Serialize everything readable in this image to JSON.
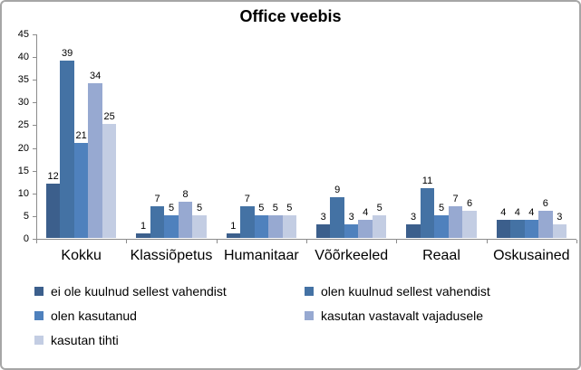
{
  "chart_data": {
    "type": "bar",
    "title": "Office veebis",
    "categories": [
      "Kokku",
      "Klassiõpetus",
      "Humanitaar",
      "Võõrkeeled",
      "Reaal",
      "Oskusained"
    ],
    "series": [
      {
        "name": "ei ole kuulnud sellest vahendist",
        "color": "#3c5f8c",
        "values": [
          12,
          1,
          1,
          3,
          3,
          4
        ]
      },
      {
        "name": "olen kuulnud sellest vahendist",
        "color": "#4472a4",
        "values": [
          39,
          7,
          7,
          9,
          11,
          4
        ]
      },
      {
        "name": "olen kasutanud",
        "color": "#4f81bd",
        "values": [
          21,
          5,
          5,
          3,
          5,
          4
        ]
      },
      {
        "name": "kasutan vastavalt vajadusele",
        "color": "#97a9d1",
        "values": [
          34,
          8,
          5,
          4,
          7,
          6
        ]
      },
      {
        "name": "kasutan tihti",
        "color": "#c3cde3",
        "values": [
          25,
          5,
          5,
          5,
          6,
          3
        ]
      }
    ],
    "ylim": [
      0,
      45
    ],
    "ytick_step": 5,
    "grid": false,
    "legend_position": "bottom",
    "data_labels": true,
    "axis_color": "#8c8c8c",
    "frame_border_color": "#a6a6a6"
  }
}
